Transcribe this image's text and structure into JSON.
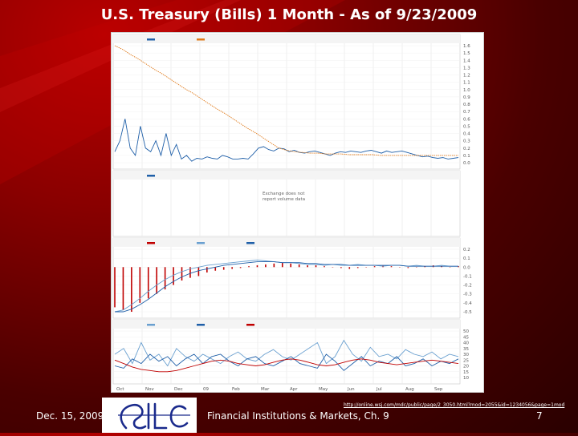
{
  "slide": {
    "title": "U.S. Treasury (Bills) 1 Month - As of 9/23/2009",
    "footer_date": "Dec. 15, 2009",
    "footer_course": "Financial Institutions & Markets, Ch. 9",
    "page_number": "7",
    "source_url": "http://online.wsj.com/mdc/public/page/2_3050.html?mod=2055&id=1234056&page=1mod",
    "logo_icon": "silc-logo-icon"
  },
  "chart_data": [
    {
      "panel": "price",
      "type": "line",
      "legend": [
        "",
        ""
      ],
      "watermark": "",
      "x_ticks": [
        "Oct",
        "Nov",
        "Dec",
        "09",
        "Feb",
        "Mar",
        "Apr",
        "May",
        "Jun",
        "Jul",
        "Aug",
        "Sep"
      ],
      "y_ticks": [
        "1.6",
        "1.5",
        "1.4",
        "1.3",
        "1.2",
        "1.1",
        "1.0",
        "0.9",
        "0.8",
        "0.7",
        "0.6",
        "0.5",
        "0.4",
        "0.3",
        "0.2",
        "0.1",
        "0.0"
      ],
      "ylim": [
        0,
        1.6
      ],
      "series": [
        {
          "color": "#1f5fa8",
          "values": [
            0.15,
            0.3,
            0.6,
            0.2,
            0.1,
            0.5,
            0.2,
            0.15,
            0.3,
            0.1,
            0.4,
            0.1,
            0.25,
            0.05,
            0.1,
            0.02,
            0.06,
            0.05,
            0.08,
            0.06,
            0.05,
            0.1,
            0.08,
            0.05,
            0.05,
            0.06,
            0.05,
            0.12,
            0.2,
            0.22,
            0.18,
            0.16,
            0.2,
            0.19,
            0.15,
            0.17,
            0.14,
            0.13,
            0.15,
            0.16,
            0.14,
            0.12,
            0.1,
            0.13,
            0.15,
            0.14,
            0.16,
            0.15,
            0.14,
            0.16,
            0.17,
            0.15,
            0.13,
            0.16,
            0.14,
            0.15,
            0.16,
            0.14,
            0.12,
            0.1,
            0.08,
            0.09,
            0.07,
            0.06,
            0.07,
            0.05,
            0.06,
            0.07
          ]
        },
        {
          "color": "#e07a1a",
          "values": [
            1.6,
            1.55,
            1.48,
            1.42,
            1.35,
            1.28,
            1.22,
            1.15,
            1.08,
            1.01,
            0.95,
            0.88,
            0.81,
            0.74,
            0.68,
            0.61,
            0.54,
            0.47,
            0.41,
            0.34,
            0.27,
            0.2,
            0.17,
            0.15,
            0.14,
            0.13,
            0.13,
            0.12,
            0.12,
            0.12,
            0.11,
            0.11,
            0.11,
            0.11,
            0.1,
            0.1,
            0.1,
            0.1,
            0.1,
            0.1,
            0.1,
            0.1,
            0.1,
            0.1,
            0.1
          ]
        }
      ]
    },
    {
      "panel": "volume",
      "type": "bar",
      "legend": [
        ""
      ],
      "note": [
        "Exchange does not",
        "report volume data"
      ],
      "values": []
    },
    {
      "panel": "macd",
      "type": "bar",
      "legend": [
        "",
        "",
        ""
      ],
      "y_ticks": [
        "0.2",
        "0.1",
        "0.0",
        "-0.1",
        "-0.2",
        "-0.3",
        "-0.4",
        "-0.5"
      ],
      "ylim": [
        -0.5,
        0.2
      ],
      "series": [
        {
          "color": "#c00000",
          "kind": "bar",
          "values": [
            -0.45,
            -0.48,
            -0.5,
            -0.4,
            -0.35,
            -0.3,
            -0.25,
            -0.2,
            -0.15,
            -0.12,
            -0.1,
            -0.06,
            -0.04,
            -0.03,
            -0.02,
            -0.01,
            0.01,
            0.02,
            0.03,
            0.04,
            0.05,
            0.04,
            0.03,
            0.02,
            0.02,
            0.01,
            0.0,
            -0.01,
            -0.02,
            -0.01,
            0.0,
            0.01,
            0.02,
            0.01,
            0.0,
            -0.01,
            0.0,
            0.01,
            0.02,
            0.01,
            0.0,
            0.01
          ]
        },
        {
          "color": "#6aa0d0",
          "kind": "line",
          "values": [
            -0.5,
            -0.48,
            -0.42,
            -0.35,
            -0.27,
            -0.2,
            -0.14,
            -0.09,
            -0.05,
            -0.02,
            0.0,
            0.02,
            0.03,
            0.04,
            0.05,
            0.06,
            0.07,
            0.08,
            0.07,
            0.06,
            0.05,
            0.05,
            0.04,
            0.03,
            0.03,
            0.02,
            0.03,
            0.02,
            0.02,
            0.03,
            0.02,
            0.02,
            0.01,
            0.02,
            0.02,
            0.01,
            0.02,
            0.01,
            0.01,
            0.02,
            0.01,
            0.01
          ]
        },
        {
          "color": "#1f5fa8",
          "kind": "line",
          "values": [
            -0.5,
            -0.5,
            -0.47,
            -0.42,
            -0.36,
            -0.29,
            -0.22,
            -0.16,
            -0.11,
            -0.07,
            -0.04,
            -0.02,
            0.0,
            0.02,
            0.03,
            0.04,
            0.05,
            0.06,
            0.06,
            0.06,
            0.05,
            0.05,
            0.05,
            0.04,
            0.04,
            0.03,
            0.03,
            0.03,
            0.02,
            0.02,
            0.02,
            0.02,
            0.02,
            0.02,
            0.02,
            0.01,
            0.01,
            0.01,
            0.01,
            0.01,
            0.01,
            0.01
          ]
        }
      ]
    },
    {
      "panel": "dmi",
      "type": "line",
      "legend": [
        "",
        "",
        ""
      ],
      "y_ticks": [
        "50",
        "45",
        "40",
        "35",
        "30",
        "25",
        "20",
        "15",
        "10"
      ],
      "ylim": [
        10,
        50
      ],
      "series": [
        {
          "color": "#6aa0d0",
          "values": [
            30,
            35,
            22,
            40,
            25,
            30,
            20,
            35,
            28,
            24,
            30,
            26,
            22,
            28,
            32,
            26,
            24,
            30,
            34,
            28,
            25,
            30,
            35,
            40,
            22,
            28,
            42,
            30,
            24,
            36,
            28,
            30,
            26,
            34,
            30,
            28,
            32,
            26,
            30,
            28
          ]
        },
        {
          "color": "#1f5fa8",
          "values": [
            20,
            18,
            26,
            22,
            30,
            24,
            28,
            20,
            26,
            30,
            22,
            28,
            30,
            24,
            20,
            26,
            28,
            22,
            20,
            24,
            28,
            22,
            20,
            18,
            30,
            24,
            16,
            22,
            28,
            20,
            24,
            22,
            28,
            20,
            22,
            26,
            20,
            24,
            22,
            26
          ]
        },
        {
          "color": "#c00000",
          "values": [
            25,
            22,
            19,
            17,
            16,
            15,
            15,
            16,
            18,
            20,
            22,
            24,
            25,
            24,
            22,
            21,
            20,
            21,
            23,
            25,
            26,
            25,
            23,
            21,
            20,
            21,
            23,
            25,
            26,
            25,
            23,
            22,
            21,
            22,
            23,
            24,
            25,
            24,
            23,
            22
          ]
        }
      ]
    }
  ]
}
